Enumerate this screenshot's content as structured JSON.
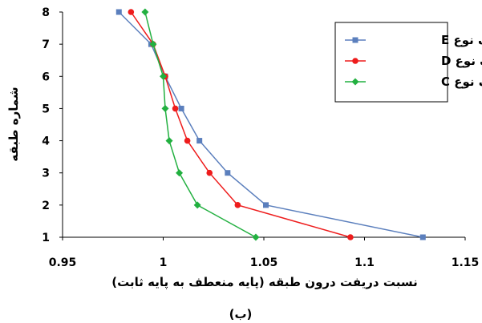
{
  "chart_data": {
    "type": "line",
    "xlabel": "نسبت دریفت درون طبقه (پایه منعطف به پایه ثابت)",
    "ylabel": "شماره طبقه",
    "caption": "(ب)",
    "xlim": [
      0.95,
      1.15
    ],
    "ylim": [
      1,
      8
    ],
    "x_ticks": [
      "0.95",
      "1",
      "1.05",
      "1.1",
      "1.15"
    ],
    "y_ticks": [
      "1",
      "2",
      "3",
      "4",
      "5",
      "6",
      "7",
      "8"
    ],
    "grid": false,
    "legend_position": "top-right",
    "series": [
      {
        "name": "خاک نوع E",
        "color": "#5b7fbd",
        "marker": "square",
        "points": [
          [
            1.129,
            1
          ],
          [
            1.051,
            2
          ],
          [
            1.032,
            3
          ],
          [
            1.018,
            4
          ],
          [
            1.009,
            5
          ],
          [
            1.001,
            6
          ],
          [
            0.994,
            7
          ],
          [
            0.978,
            8
          ]
        ]
      },
      {
        "name": "خاک نوع D",
        "color": "#ee1c1c",
        "marker": "circle",
        "points": [
          [
            1.093,
            1
          ],
          [
            1.037,
            2
          ],
          [
            1.023,
            3
          ],
          [
            1.012,
            4
          ],
          [
            1.006,
            5
          ],
          [
            1.001,
            6
          ],
          [
            0.995,
            7
          ],
          [
            0.984,
            8
          ]
        ]
      },
      {
        "name": "خاک نوع C",
        "color": "#22b040",
        "marker": "diamond",
        "points": [
          [
            1.046,
            1
          ],
          [
            1.017,
            2
          ],
          [
            1.008,
            3
          ],
          [
            1.003,
            4
          ],
          [
            1.001,
            5
          ],
          [
            1.0,
            6
          ],
          [
            0.995,
            7
          ],
          [
            0.991,
            8
          ]
        ]
      }
    ]
  }
}
